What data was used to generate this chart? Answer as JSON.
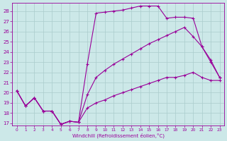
{
  "xlabel": "Windchill (Refroidissement éolien,°C)",
  "bg_color": "#cce8e8",
  "grid_color": "#aacccc",
  "line_color": "#990099",
  "xlim": [
    -0.5,
    23.5
  ],
  "ylim": [
    16.8,
    28.8
  ],
  "yticks": [
    17,
    18,
    19,
    20,
    21,
    22,
    23,
    24,
    25,
    26,
    27,
    28
  ],
  "xticks": [
    0,
    1,
    2,
    3,
    4,
    5,
    6,
    7,
    8,
    9,
    10,
    11,
    12,
    13,
    14,
    15,
    16,
    17,
    18,
    19,
    20,
    21,
    22,
    23
  ],
  "line1_x": [
    0,
    1,
    2,
    3,
    4,
    5,
    6,
    7,
    8,
    9,
    10,
    11,
    12,
    13,
    14,
    15,
    16,
    17,
    18,
    19,
    20,
    21,
    22,
    23
  ],
  "line1_y": [
    20.2,
    18.7,
    19.5,
    18.2,
    18.2,
    16.9,
    17.2,
    17.1,
    18.5,
    19.0,
    19.3,
    19.7,
    20.0,
    20.3,
    20.6,
    20.9,
    21.2,
    21.5,
    21.5,
    21.7,
    22.0,
    21.5,
    21.2,
    21.2
  ],
  "line2_x": [
    0,
    1,
    2,
    3,
    4,
    5,
    6,
    7,
    8,
    9,
    10,
    11,
    12,
    13,
    14,
    15,
    16,
    17,
    18,
    19,
    20,
    21,
    22,
    23
  ],
  "line2_y": [
    20.2,
    18.7,
    19.5,
    18.2,
    18.2,
    16.9,
    17.2,
    17.1,
    19.8,
    21.5,
    22.2,
    22.8,
    23.3,
    23.8,
    24.3,
    24.8,
    25.2,
    25.6,
    26.0,
    26.4,
    25.5,
    24.5,
    23.0,
    21.5
  ],
  "line3_x": [
    0,
    1,
    2,
    3,
    4,
    5,
    6,
    7,
    8,
    9,
    10,
    11,
    12,
    13,
    14,
    15,
    16,
    17,
    18,
    19,
    20,
    21,
    22,
    23
  ],
  "line3_y": [
    20.2,
    18.7,
    19.5,
    18.2,
    18.2,
    16.9,
    17.2,
    17.1,
    22.8,
    27.8,
    27.9,
    28.0,
    28.1,
    28.3,
    28.5,
    28.5,
    28.5,
    27.3,
    27.4,
    27.4,
    27.3,
    24.5,
    23.2,
    21.5
  ]
}
